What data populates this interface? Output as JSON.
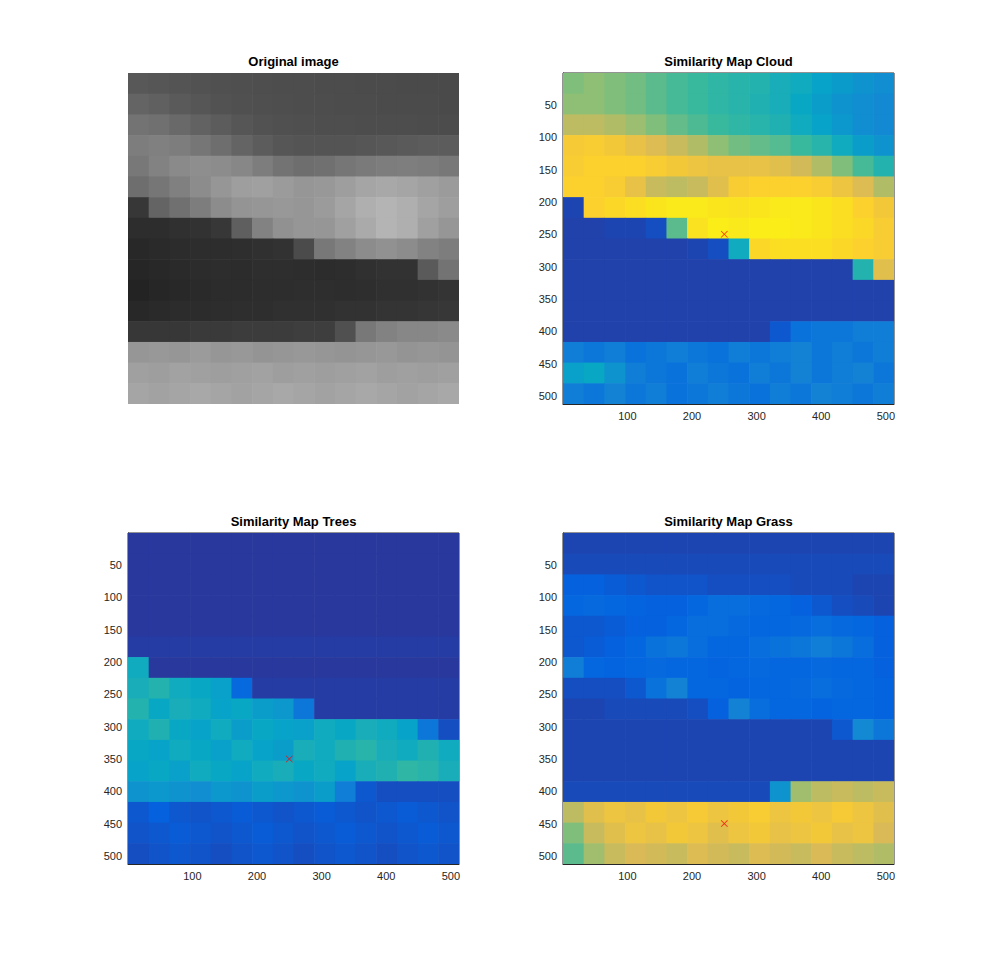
{
  "chart_data": [
    {
      "type": "image",
      "title": "Original image",
      "tick_labels": false,
      "xlim": [
        0.5,
        512.5
      ],
      "ylim": [
        0.5,
        512.5
      ],
      "clim": [
        0,
        255
      ],
      "cells": [
        [
          88,
          86,
          84,
          82,
          80,
          79,
          78,
          77,
          77,
          76,
          76,
          75,
          75,
          74,
          74,
          74
        ],
        [
          100,
          96,
          90,
          86,
          82,
          80,
          79,
          78,
          77,
          77,
          76,
          76,
          75,
          75,
          75,
          74
        ],
        [
          115,
          112,
          105,
          98,
          92,
          86,
          82,
          80,
          79,
          78,
          78,
          77,
          77,
          77,
          76,
          76
        ],
        [
          125,
          128,
          125,
          118,
          110,
          100,
          92,
          86,
          84,
          84,
          84,
          86,
          88,
          90,
          92,
          92
        ],
        [
          120,
          130,
          138,
          142,
          140,
          135,
          125,
          115,
          110,
          112,
          118,
          122,
          125,
          126,
          124,
          120
        ],
        [
          110,
          118,
          128,
          140,
          150,
          158,
          160,
          155,
          150,
          152,
          158,
          165,
          168,
          165,
          160,
          155
        ],
        [
          55,
          100,
          112,
          125,
          140,
          148,
          150,
          152,
          150,
          155,
          165,
          175,
          180,
          175,
          165,
          158
        ],
        [
          45,
          45,
          48,
          50,
          55,
          95,
          130,
          145,
          150,
          150,
          160,
          170,
          180,
          175,
          160,
          150
        ],
        [
          40,
          42,
          44,
          45,
          45,
          46,
          48,
          50,
          75,
          120,
          130,
          140,
          145,
          140,
          130,
          125
        ],
        [
          38,
          40,
          42,
          44,
          45,
          44,
          46,
          46,
          45,
          44,
          45,
          48,
          50,
          50,
          90,
          115
        ],
        [
          35,
          38,
          40,
          42,
          44,
          44,
          45,
          45,
          46,
          46,
          45,
          46,
          48,
          48,
          50,
          52
        ],
        [
          40,
          42,
          44,
          44,
          45,
          46,
          46,
          48,
          48,
          48,
          50,
          50,
          52,
          52,
          54,
          55
        ],
        [
          55,
          55,
          55,
          58,
          58,
          60,
          60,
          60,
          62,
          62,
          80,
          120,
          130,
          135,
          135,
          138
        ],
        [
          150,
          152,
          150,
          155,
          150,
          152,
          148,
          150,
          152,
          150,
          148,
          150,
          152,
          148,
          150,
          148
        ],
        [
          160,
          158,
          162,
          160,
          158,
          160,
          162,
          158,
          160,
          158,
          160,
          162,
          158,
          160,
          158,
          160
        ],
        [
          165,
          162,
          165,
          168,
          165,
          162,
          165,
          168,
          165,
          162,
          165,
          168,
          165,
          162,
          165,
          168
        ]
      ]
    },
    {
      "type": "heatmap",
      "title": "Similarity Map Cloud",
      "xlim": [
        0.5,
        512.5
      ],
      "ylim": [
        0.5,
        512.5
      ],
      "xticks": [
        100,
        200,
        300,
        400,
        500
      ],
      "yticks": [
        50,
        100,
        150,
        200,
        250,
        300,
        350,
        400,
        450,
        500
      ],
      "clim": [
        0,
        1
      ],
      "cells": [
        [
          0.6,
          0.62,
          0.6,
          0.58,
          0.55,
          0.52,
          0.5,
          0.48,
          0.46,
          0.45,
          0.42,
          0.4,
          0.36,
          0.33,
          0.3,
          0.28
        ],
        [
          0.62,
          0.62,
          0.6,
          0.58,
          0.55,
          0.52,
          0.5,
          0.48,
          0.46,
          0.44,
          0.42,
          0.38,
          0.34,
          0.3,
          0.28,
          0.26
        ],
        [
          0.7,
          0.7,
          0.68,
          0.64,
          0.6,
          0.56,
          0.53,
          0.5,
          0.48,
          0.46,
          0.44,
          0.4,
          0.36,
          0.32,
          0.28,
          0.26
        ],
        [
          0.85,
          0.86,
          0.84,
          0.8,
          0.76,
          0.72,
          0.68,
          0.62,
          0.58,
          0.56,
          0.54,
          0.5,
          0.46,
          0.4,
          0.34,
          0.3
        ],
        [
          0.86,
          0.88,
          0.88,
          0.88,
          0.86,
          0.84,
          0.82,
          0.8,
          0.8,
          0.8,
          0.78,
          0.74,
          0.68,
          0.6,
          0.52,
          0.45
        ],
        [
          0.88,
          0.88,
          0.86,
          0.8,
          0.72,
          0.7,
          0.72,
          0.78,
          0.86,
          0.88,
          0.88,
          0.88,
          0.86,
          0.82,
          0.76,
          0.68
        ],
        [
          0.06,
          0.88,
          0.9,
          0.92,
          0.94,
          0.95,
          0.95,
          0.94,
          0.93,
          0.94,
          0.95,
          0.95,
          0.94,
          0.92,
          0.88,
          0.84
        ],
        [
          0.05,
          0.05,
          0.06,
          0.06,
          0.08,
          0.55,
          0.93,
          0.96,
          0.95,
          0.96,
          0.96,
          0.95,
          0.94,
          0.92,
          0.9,
          0.86
        ],
        [
          0.05,
          0.05,
          0.05,
          0.05,
          0.05,
          0.05,
          0.06,
          0.08,
          0.4,
          0.9,
          0.92,
          0.92,
          0.92,
          0.9,
          0.88,
          0.86
        ],
        [
          0.05,
          0.05,
          0.05,
          0.05,
          0.05,
          0.05,
          0.05,
          0.05,
          0.05,
          0.05,
          0.05,
          0.05,
          0.05,
          0.05,
          0.45,
          0.78
        ],
        [
          0.05,
          0.05,
          0.05,
          0.05,
          0.05,
          0.05,
          0.05,
          0.05,
          0.05,
          0.05,
          0.05,
          0.05,
          0.05,
          0.05,
          0.05,
          0.05
        ],
        [
          0.05,
          0.05,
          0.05,
          0.05,
          0.05,
          0.05,
          0.05,
          0.05,
          0.05,
          0.05,
          0.05,
          0.05,
          0.05,
          0.05,
          0.05,
          0.05
        ],
        [
          0.05,
          0.05,
          0.05,
          0.05,
          0.05,
          0.05,
          0.05,
          0.05,
          0.05,
          0.05,
          0.1,
          0.18,
          0.2,
          0.2,
          0.22,
          0.22
        ],
        [
          0.22,
          0.2,
          0.22,
          0.18,
          0.2,
          0.22,
          0.2,
          0.18,
          0.22,
          0.2,
          0.22,
          0.24,
          0.2,
          0.22,
          0.2,
          0.22
        ],
        [
          0.35,
          0.38,
          0.3,
          0.22,
          0.2,
          0.18,
          0.22,
          0.2,
          0.18,
          0.22,
          0.2,
          0.24,
          0.2,
          0.22,
          0.24,
          0.2
        ],
        [
          0.22,
          0.2,
          0.24,
          0.2,
          0.22,
          0.18,
          0.2,
          0.22,
          0.2,
          0.18,
          0.22,
          0.2,
          0.24,
          0.22,
          0.2,
          0.22
        ]
      ],
      "series": [
        {
          "type": "scatter",
          "marker": "x",
          "color": "#ff0000",
          "x": [
            250
          ],
          "y": [
            250
          ]
        }
      ]
    },
    {
      "type": "heatmap",
      "title": "Similarity Map Trees",
      "xlim": [
        0.5,
        512.5
      ],
      "ylim": [
        0.5,
        512.5
      ],
      "xticks": [
        100,
        200,
        300,
        400,
        500
      ],
      "yticks": [
        50,
        100,
        150,
        200,
        250,
        300,
        350,
        400,
        450,
        500
      ],
      "clim": [
        0,
        1
      ],
      "cells": [
        [
          0.03,
          0.03,
          0.03,
          0.03,
          0.03,
          0.03,
          0.03,
          0.03,
          0.03,
          0.03,
          0.03,
          0.03,
          0.03,
          0.03,
          0.03,
          0.03
        ],
        [
          0.03,
          0.03,
          0.03,
          0.03,
          0.03,
          0.03,
          0.03,
          0.03,
          0.03,
          0.03,
          0.03,
          0.03,
          0.03,
          0.03,
          0.03,
          0.03
        ],
        [
          0.03,
          0.03,
          0.03,
          0.03,
          0.03,
          0.03,
          0.03,
          0.03,
          0.03,
          0.03,
          0.03,
          0.03,
          0.03,
          0.03,
          0.03,
          0.03
        ],
        [
          0.03,
          0.03,
          0.03,
          0.03,
          0.03,
          0.03,
          0.03,
          0.03,
          0.03,
          0.03,
          0.03,
          0.03,
          0.03,
          0.03,
          0.03,
          0.03
        ],
        [
          0.03,
          0.03,
          0.03,
          0.03,
          0.03,
          0.03,
          0.03,
          0.03,
          0.03,
          0.03,
          0.03,
          0.03,
          0.03,
          0.03,
          0.03,
          0.03
        ],
        [
          0.04,
          0.04,
          0.04,
          0.04,
          0.04,
          0.04,
          0.04,
          0.04,
          0.04,
          0.04,
          0.04,
          0.04,
          0.04,
          0.04,
          0.04,
          0.04
        ],
        [
          0.4,
          0.03,
          0.03,
          0.03,
          0.03,
          0.03,
          0.03,
          0.03,
          0.03,
          0.03,
          0.03,
          0.03,
          0.03,
          0.03,
          0.03,
          0.03
        ],
        [
          0.42,
          0.45,
          0.4,
          0.38,
          0.35,
          0.15,
          0.04,
          0.04,
          0.04,
          0.04,
          0.04,
          0.04,
          0.04,
          0.04,
          0.04,
          0.04
        ],
        [
          0.45,
          0.38,
          0.42,
          0.4,
          0.36,
          0.38,
          0.34,
          0.32,
          0.2,
          0.04,
          0.04,
          0.04,
          0.04,
          0.04,
          0.04,
          0.04
        ],
        [
          0.4,
          0.44,
          0.38,
          0.36,
          0.4,
          0.34,
          0.38,
          0.36,
          0.35,
          0.4,
          0.38,
          0.42,
          0.4,
          0.36,
          0.2,
          0.08
        ],
        [
          0.38,
          0.36,
          0.4,
          0.38,
          0.35,
          0.4,
          0.36,
          0.34,
          0.42,
          0.4,
          0.44,
          0.46,
          0.42,
          0.4,
          0.44,
          0.4
        ],
        [
          0.36,
          0.38,
          0.35,
          0.4,
          0.38,
          0.36,
          0.4,
          0.42,
          0.38,
          0.4,
          0.36,
          0.42,
          0.44,
          0.48,
          0.46,
          0.42
        ],
        [
          0.3,
          0.32,
          0.3,
          0.28,
          0.32,
          0.3,
          0.34,
          0.32,
          0.3,
          0.34,
          0.22,
          0.1,
          0.08,
          0.08,
          0.08,
          0.08
        ],
        [
          0.1,
          0.12,
          0.1,
          0.09,
          0.1,
          0.11,
          0.1,
          0.09,
          0.1,
          0.11,
          0.1,
          0.09,
          0.1,
          0.11,
          0.1,
          0.09
        ],
        [
          0.09,
          0.1,
          0.11,
          0.1,
          0.09,
          0.1,
          0.11,
          0.1,
          0.09,
          0.1,
          0.11,
          0.1,
          0.09,
          0.1,
          0.11,
          0.1
        ],
        [
          0.08,
          0.09,
          0.1,
          0.09,
          0.08,
          0.09,
          0.1,
          0.09,
          0.08,
          0.09,
          0.1,
          0.09,
          0.08,
          0.09,
          0.1,
          0.09
        ]
      ],
      "series": [
        {
          "type": "scatter",
          "marker": "x",
          "color": "#ff0000",
          "x": [
            250
          ],
          "y": [
            350
          ]
        }
      ]
    },
    {
      "type": "heatmap",
      "title": "Similarity Map Grass",
      "xlim": [
        0.5,
        512.5
      ],
      "ylim": [
        0.5,
        512.5
      ],
      "xticks": [
        100,
        200,
        300,
        400,
        500
      ],
      "yticks": [
        50,
        100,
        150,
        200,
        250,
        300,
        350,
        400,
        450,
        500
      ],
      "clim": [
        0,
        1
      ],
      "cells": [
        [
          0.06,
          0.06,
          0.06,
          0.06,
          0.06,
          0.06,
          0.06,
          0.06,
          0.06,
          0.06,
          0.06,
          0.06,
          0.06,
          0.06,
          0.06,
          0.06
        ],
        [
          0.07,
          0.07,
          0.07,
          0.07,
          0.07,
          0.07,
          0.07,
          0.07,
          0.07,
          0.07,
          0.07,
          0.07,
          0.07,
          0.07,
          0.07,
          0.07
        ],
        [
          0.12,
          0.12,
          0.11,
          0.1,
          0.09,
          0.09,
          0.09,
          0.08,
          0.08,
          0.08,
          0.08,
          0.07,
          0.07,
          0.07,
          0.06,
          0.06
        ],
        [
          0.14,
          0.15,
          0.14,
          0.13,
          0.12,
          0.12,
          0.14,
          0.16,
          0.16,
          0.15,
          0.14,
          0.12,
          0.1,
          0.08,
          0.07,
          0.06
        ],
        [
          0.1,
          0.1,
          0.11,
          0.12,
          0.12,
          0.14,
          0.16,
          0.16,
          0.15,
          0.14,
          0.14,
          0.15,
          0.16,
          0.15,
          0.14,
          0.12
        ],
        [
          0.1,
          0.11,
          0.12,
          0.14,
          0.18,
          0.2,
          0.16,
          0.14,
          0.14,
          0.16,
          0.18,
          0.2,
          0.22,
          0.2,
          0.16,
          0.12
        ],
        [
          0.22,
          0.14,
          0.13,
          0.14,
          0.15,
          0.14,
          0.14,
          0.13,
          0.14,
          0.15,
          0.14,
          0.14,
          0.15,
          0.14,
          0.14,
          0.12
        ],
        [
          0.08,
          0.08,
          0.08,
          0.1,
          0.18,
          0.24,
          0.14,
          0.14,
          0.13,
          0.14,
          0.14,
          0.15,
          0.16,
          0.15,
          0.14,
          0.13
        ],
        [
          0.06,
          0.06,
          0.07,
          0.07,
          0.07,
          0.07,
          0.08,
          0.12,
          0.24,
          0.16,
          0.14,
          0.14,
          0.13,
          0.14,
          0.14,
          0.13
        ],
        [
          0.06,
          0.06,
          0.06,
          0.06,
          0.06,
          0.06,
          0.06,
          0.06,
          0.06,
          0.06,
          0.06,
          0.06,
          0.06,
          0.1,
          0.26,
          0.2
        ],
        [
          0.06,
          0.06,
          0.06,
          0.06,
          0.06,
          0.06,
          0.06,
          0.06,
          0.06,
          0.06,
          0.06,
          0.06,
          0.06,
          0.06,
          0.06,
          0.06
        ],
        [
          0.06,
          0.06,
          0.06,
          0.06,
          0.06,
          0.06,
          0.06,
          0.06,
          0.06,
          0.06,
          0.06,
          0.06,
          0.06,
          0.06,
          0.06,
          0.06
        ],
        [
          0.07,
          0.07,
          0.07,
          0.07,
          0.07,
          0.07,
          0.07,
          0.07,
          0.07,
          0.07,
          0.3,
          0.65,
          0.7,
          0.72,
          0.7,
          0.72
        ],
        [
          0.7,
          0.78,
          0.82,
          0.8,
          0.84,
          0.82,
          0.85,
          0.82,
          0.84,
          0.86,
          0.82,
          0.84,
          0.82,
          0.85,
          0.82,
          0.78
        ],
        [
          0.6,
          0.72,
          0.78,
          0.82,
          0.8,
          0.84,
          0.82,
          0.78,
          0.82,
          0.84,
          0.8,
          0.82,
          0.84,
          0.8,
          0.82,
          0.75
        ],
        [
          0.55,
          0.65,
          0.72,
          0.75,
          0.74,
          0.72,
          0.76,
          0.74,
          0.72,
          0.76,
          0.74,
          0.72,
          0.75,
          0.72,
          0.7,
          0.68
        ]
      ],
      "series": [
        {
          "type": "scatter",
          "marker": "x",
          "color": "#ff0000",
          "x": [
            250
          ],
          "y": [
            450
          ]
        }
      ]
    }
  ]
}
